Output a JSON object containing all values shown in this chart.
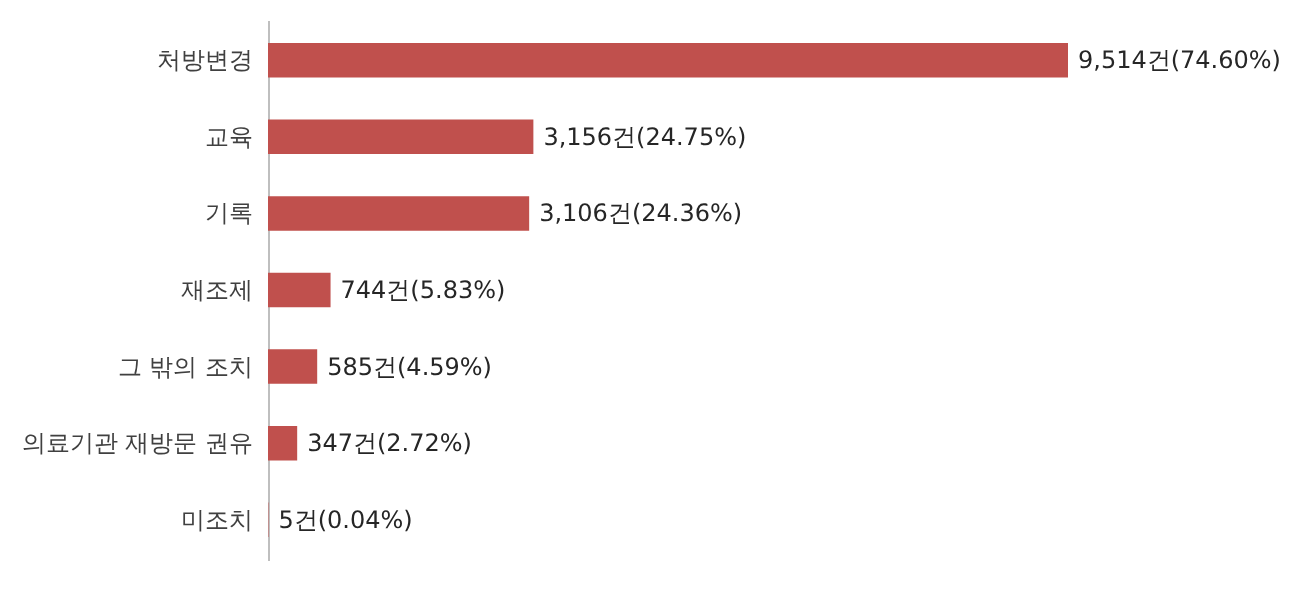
{
  "chart_data": {
    "type": "bar",
    "orientation": "horizontal",
    "categories": [
      "처방변경",
      "교육",
      "기록",
      "재조제",
      "그 밖의 조치",
      "의료기관 재방문 권유",
      "미조치"
    ],
    "values": [
      9514,
      3156,
      3106,
      744,
      585,
      347,
      5
    ],
    "value_labels": [
      "9,514건(74.60%)",
      "3,156건(24.75%)",
      "3,106건(24.36%)",
      "744건(5.83%)",
      "585건(4.59%)",
      "347건(2.72%)",
      "5건(0.04%)"
    ],
    "color": "#c0504d"
  }
}
